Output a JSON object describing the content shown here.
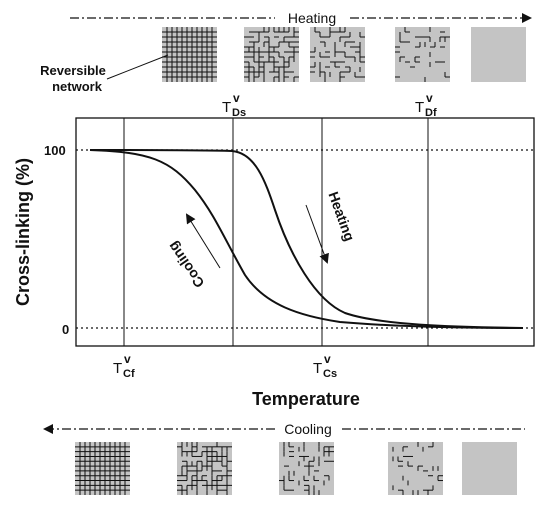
{
  "top_arrow_label": "Heating",
  "bottom_arrow_label": "Cooling",
  "reversible_network_line1": "Reversible",
  "reversible_network_line2": "network",
  "y_axis_label": "Cross-linking (%)",
  "x_axis_label": "Temperature",
  "y_tick_labels": [
    "100",
    "0"
  ],
  "curve_labels": {
    "heating": "Heating",
    "cooling": "Cooling"
  },
  "temperatures": {
    "T_Ds": {
      "T": "T",
      "sup": "v",
      "sub": "Ds"
    },
    "T_Df": {
      "T": "T",
      "sup": "v",
      "sub": "Df"
    },
    "T_Cf": {
      "T": "T",
      "sup": "v",
      "sub": "Cf"
    },
    "T_Cs": {
      "T": "T",
      "sup": "v",
      "sub": "Cs"
    }
  },
  "colors": {
    "tile_fill": "#c4c4c4",
    "line": "#111111"
  },
  "tiles": {
    "top": [
      "full-network",
      "dense-broken",
      "sparse-broken",
      "few-segments",
      "no-network"
    ],
    "bottom": [
      "full-network",
      "dense-broken",
      "sparse-broken",
      "few-segments",
      "no-network"
    ]
  }
}
